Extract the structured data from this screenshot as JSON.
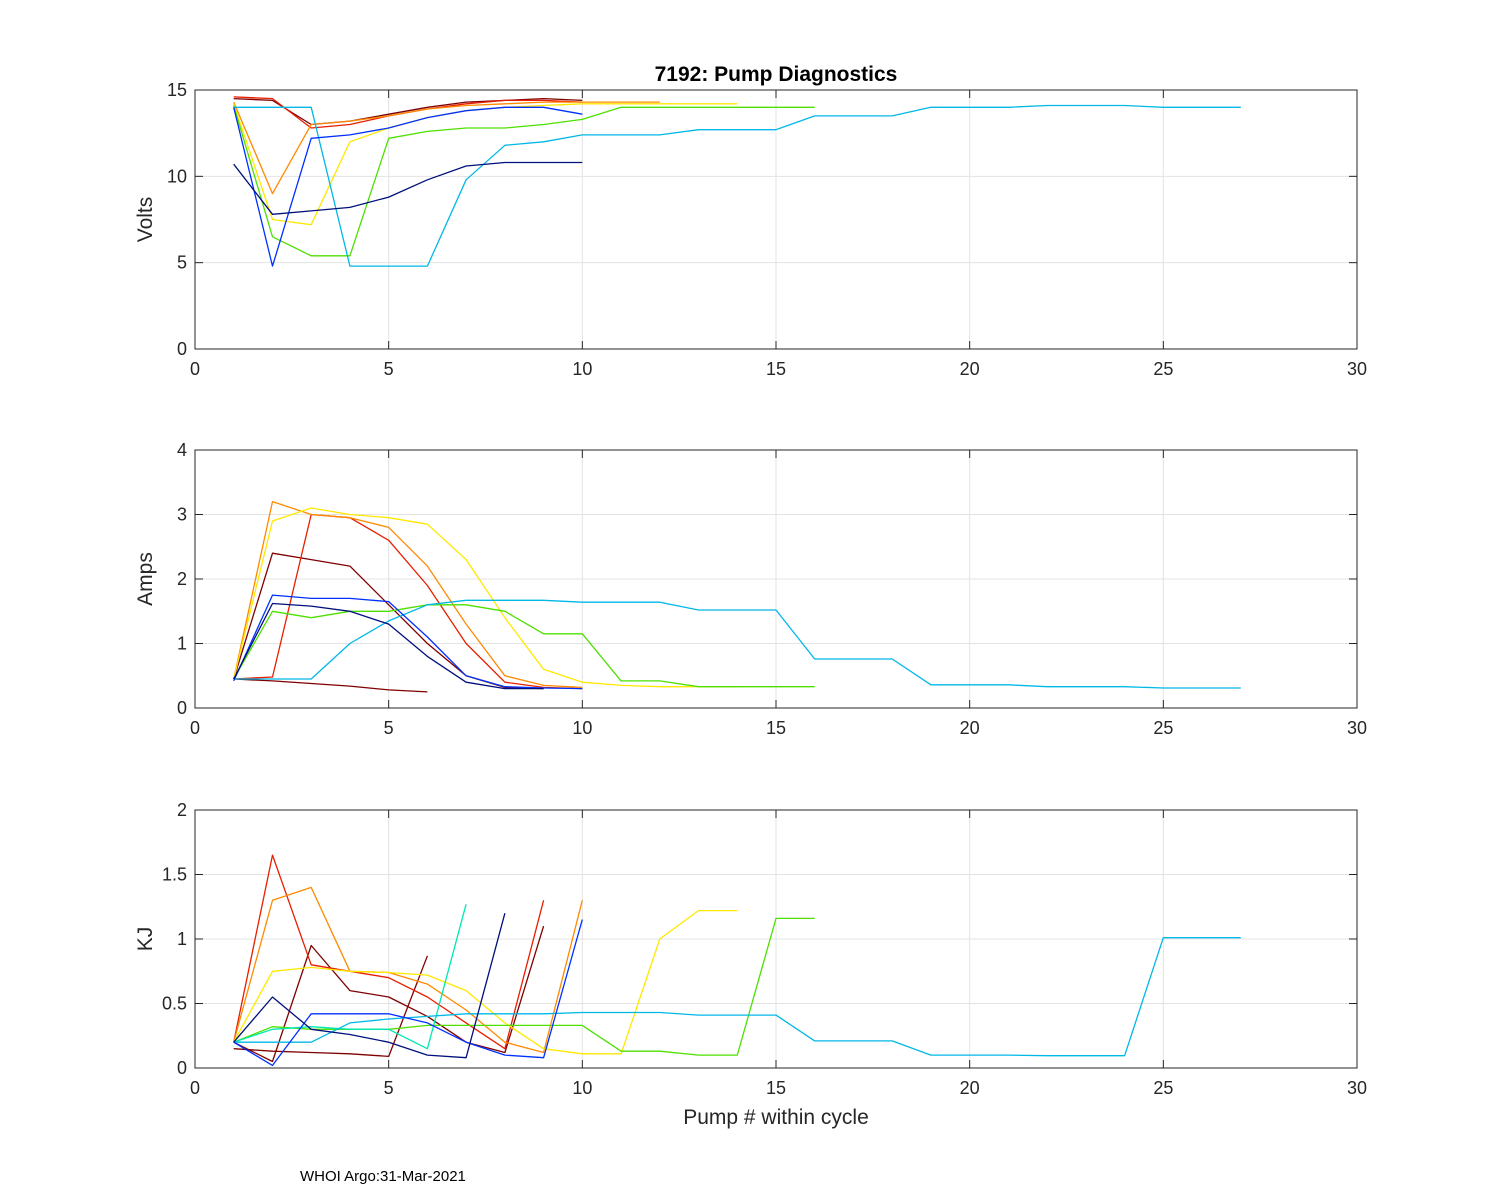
{
  "figure": {
    "title": "7192: Pump Diagnostics",
    "footer": "WHOI Argo:31-Mar-2021"
  },
  "chart_data": [
    {
      "type": "line",
      "title": "7192: Pump Diagnostics",
      "xlabel": "",
      "ylabel": "Volts",
      "xlim": [
        0,
        30
      ],
      "ylim": [
        0,
        15
      ],
      "xticks": [
        0,
        5,
        10,
        15,
        20,
        25,
        30
      ],
      "yticks": [
        0,
        5,
        10,
        15
      ],
      "grid": true,
      "series_note": "Many overlaid cycles colored by cycle index (jet colormap); representative series listed",
      "series": [
        {
          "name": "dark-red cycles",
          "color": "#7f0000",
          "x": [
            1,
            2,
            3,
            4,
            5,
            6,
            7,
            8,
            9,
            10
          ],
          "y": [
            14.5,
            14.4,
            13.0,
            13.2,
            13.6,
            14.0,
            14.3,
            14.4,
            14.5,
            14.4
          ]
        },
        {
          "name": "red cycles",
          "color": "#e81e00",
          "x": [
            1,
            2,
            3,
            4,
            5,
            6,
            7,
            8,
            9,
            10
          ],
          "y": [
            14.6,
            14.5,
            12.8,
            13.0,
            13.5,
            13.9,
            14.2,
            14.4,
            14.4,
            14.3
          ]
        },
        {
          "name": "orange cycles",
          "color": "#ff8a00",
          "x": [
            1,
            2,
            3,
            4,
            5,
            6,
            7,
            8,
            9,
            10,
            11,
            12
          ],
          "y": [
            14.3,
            9.0,
            13.0,
            13.2,
            13.5,
            13.9,
            14.1,
            14.2,
            14.3,
            14.3,
            14.3,
            14.3
          ]
        },
        {
          "name": "yellow cycles",
          "color": "#ffe800",
          "x": [
            1,
            2,
            3,
            4,
            5,
            6,
            7,
            8,
            9,
            10,
            11,
            12,
            13,
            14
          ],
          "y": [
            14.2,
            7.5,
            7.2,
            12.0,
            12.8,
            13.4,
            13.8,
            14.0,
            14.1,
            14.2,
            14.2,
            14.2,
            14.2,
            14.2
          ]
        },
        {
          "name": "green cycles",
          "color": "#4ee000",
          "x": [
            1,
            2,
            3,
            4,
            5,
            6,
            7,
            8,
            9,
            10,
            11,
            12,
            13,
            14,
            15,
            16
          ],
          "y": [
            14.1,
            6.5,
            5.4,
            5.4,
            12.2,
            12.6,
            12.8,
            12.8,
            13.0,
            13.3,
            14.0,
            14.0,
            14.0,
            14.0,
            14.0,
            14.0
          ]
        },
        {
          "name": "cyan long cycle",
          "color": "#00b8e8",
          "x": [
            1,
            2,
            3,
            4,
            5,
            6,
            7,
            8,
            9,
            10,
            11,
            12,
            13,
            14,
            15,
            16,
            17,
            18,
            19,
            20,
            21,
            22,
            23,
            24,
            25,
            26,
            27
          ],
          "y": [
            14.0,
            14.0,
            14.0,
            4.8,
            4.8,
            4.8,
            9.8,
            11.8,
            12.0,
            12.4,
            12.4,
            12.4,
            12.7,
            12.7,
            12.7,
            13.5,
            13.5,
            13.5,
            14.0,
            14.0,
            14.0,
            14.1,
            14.1,
            14.1,
            14.0,
            14.0,
            14.0
          ]
        },
        {
          "name": "blue cycles",
          "color": "#0030ff",
          "x": [
            1,
            2,
            3,
            4,
            5,
            6,
            7,
            8,
            9,
            10
          ],
          "y": [
            14.0,
            4.8,
            12.2,
            12.4,
            12.8,
            13.4,
            13.8,
            14.0,
            14.0,
            13.6
          ]
        },
        {
          "name": "navy cycles",
          "color": "#00107a",
          "x": [
            1,
            2,
            3,
            4,
            5,
            6,
            7,
            8,
            9,
            10
          ],
          "y": [
            10.7,
            7.8,
            8.0,
            8.2,
            8.8,
            9.8,
            10.6,
            10.8,
            10.8,
            10.8
          ]
        }
      ]
    },
    {
      "type": "line",
      "xlabel": "",
      "ylabel": "Amps",
      "xlim": [
        0,
        30
      ],
      "ylim": [
        0,
        4
      ],
      "xticks": [
        0,
        5,
        10,
        15,
        20,
        25,
        30
      ],
      "yticks": [
        0,
        1,
        2,
        3,
        4
      ],
      "grid": true,
      "series": [
        {
          "name": "dark-red cycles",
          "color": "#7f0000",
          "x": [
            1,
            2,
            3,
            4,
            5,
            6
          ],
          "y": [
            0.45,
            0.42,
            0.38,
            0.34,
            0.28,
            0.25
          ]
        },
        {
          "name": "dark-red cycles b",
          "color": "#7f0000",
          "x": [
            1,
            2,
            3,
            4,
            5,
            6,
            7,
            8,
            9
          ],
          "y": [
            0.45,
            2.4,
            2.3,
            2.2,
            1.6,
            1.0,
            0.5,
            0.32,
            0.3
          ]
        },
        {
          "name": "red cycles",
          "color": "#e81e00",
          "x": [
            1,
            2,
            3,
            4,
            5,
            6,
            7,
            8,
            9,
            10
          ],
          "y": [
            0.45,
            0.48,
            3.0,
            2.95,
            2.6,
            1.9,
            1.0,
            0.4,
            0.32,
            0.3
          ]
        },
        {
          "name": "orange cycles",
          "color": "#ff8a00",
          "x": [
            1,
            2,
            3,
            4,
            5,
            6,
            7,
            8,
            9,
            10
          ],
          "y": [
            0.45,
            3.2,
            3.0,
            2.95,
            2.8,
            2.2,
            1.3,
            0.5,
            0.35,
            0.32
          ]
        },
        {
          "name": "yellow cycles",
          "color": "#ffe800",
          "x": [
            1,
            2,
            3,
            4,
            5,
            6,
            7,
            8,
            9,
            10,
            11,
            12,
            13,
            14
          ],
          "y": [
            0.45,
            2.9,
            3.1,
            3.0,
            2.95,
            2.85,
            2.3,
            1.4,
            0.6,
            0.4,
            0.35,
            0.33,
            0.33,
            0.33
          ]
        },
        {
          "name": "green cycles",
          "color": "#4ee000",
          "x": [
            1,
            2,
            3,
            4,
            5,
            6,
            7,
            8,
            9,
            10,
            11,
            12,
            13,
            14,
            15,
            16
          ],
          "y": [
            0.45,
            1.5,
            1.4,
            1.5,
            1.5,
            1.6,
            1.6,
            1.5,
            1.15,
            1.15,
            0.42,
            0.42,
            0.33,
            0.33,
            0.33,
            0.33
          ]
        },
        {
          "name": "cyan long cycle",
          "color": "#00b8e8",
          "x": [
            1,
            2,
            3,
            4,
            5,
            6,
            7,
            8,
            9,
            10,
            11,
            12,
            13,
            14,
            15,
            16,
            17,
            18,
            19,
            20,
            21,
            22,
            23,
            24,
            25,
            26,
            27
          ],
          "y": [
            0.45,
            0.45,
            0.45,
            1.0,
            1.35,
            1.6,
            1.67,
            1.67,
            1.67,
            1.64,
            1.64,
            1.64,
            1.52,
            1.52,
            1.52,
            0.76,
            0.76,
            0.76,
            0.36,
            0.36,
            0.36,
            0.33,
            0.33,
            0.33,
            0.31,
            0.31,
            0.31
          ]
        },
        {
          "name": "blue cycles",
          "color": "#0030ff",
          "x": [
            1,
            2,
            3,
            4,
            5,
            6,
            7,
            8,
            9,
            10
          ],
          "y": [
            0.42,
            1.75,
            1.7,
            1.7,
            1.65,
            1.1,
            0.5,
            0.33,
            0.31,
            0.3
          ]
        },
        {
          "name": "navy cycles",
          "color": "#00107a",
          "x": [
            1,
            2,
            3,
            4,
            5,
            6,
            7,
            8,
            9
          ],
          "y": [
            0.45,
            1.62,
            1.58,
            1.5,
            1.3,
            0.8,
            0.4,
            0.3,
            0.3
          ]
        }
      ]
    },
    {
      "type": "line",
      "xlabel": "Pump # within cycle",
      "ylabel": "KJ",
      "xlim": [
        0,
        30
      ],
      "ylim": [
        0,
        2
      ],
      "xticks": [
        0,
        5,
        10,
        15,
        20,
        25,
        30
      ],
      "yticks": [
        0,
        0.5,
        1,
        1.5,
        2
      ],
      "ytick_labels": [
        "0",
        "0.5",
        "1",
        "1.5",
        "2"
      ],
      "grid": true,
      "series": [
        {
          "name": "dark-red cycles",
          "color": "#7f0000",
          "x": [
            1,
            2,
            3,
            4,
            5,
            6
          ],
          "y": [
            0.15,
            0.13,
            0.12,
            0.11,
            0.09,
            0.87
          ]
        },
        {
          "name": "dark-red cycles b",
          "color": "#7f0000",
          "x": [
            1,
            2,
            3,
            4,
            5,
            6,
            7,
            8,
            9
          ],
          "y": [
            0.2,
            0.05,
            0.95,
            0.6,
            0.55,
            0.4,
            0.2,
            0.12,
            1.1
          ]
        },
        {
          "name": "red cycles",
          "color": "#e81e00",
          "x": [
            1,
            2,
            3,
            4,
            5,
            6,
            7,
            8,
            9
          ],
          "y": [
            0.2,
            1.65,
            0.8,
            0.75,
            0.7,
            0.55,
            0.35,
            0.15,
            1.3
          ]
        },
        {
          "name": "orange cycles",
          "color": "#ff8a00",
          "x": [
            1,
            2,
            3,
            4,
            5,
            6,
            7,
            8,
            9,
            10
          ],
          "y": [
            0.2,
            1.3,
            1.4,
            0.75,
            0.74,
            0.65,
            0.45,
            0.2,
            0.12,
            1.3
          ]
        },
        {
          "name": "yellow cycles",
          "color": "#ffe800",
          "x": [
            1,
            2,
            3,
            4,
            5,
            6,
            7,
            8,
            9,
            10,
            11,
            12,
            13,
            14
          ],
          "y": [
            0.2,
            0.75,
            0.78,
            0.75,
            0.74,
            0.72,
            0.6,
            0.35,
            0.15,
            0.11,
            0.11,
            1.0,
            1.22,
            1.22
          ]
        },
        {
          "name": "green cycles",
          "color": "#4ee000",
          "x": [
            1,
            2,
            3,
            4,
            5,
            6,
            7,
            8,
            9,
            10,
            11,
            12,
            13,
            14,
            15,
            16
          ],
          "y": [
            0.2,
            0.32,
            0.3,
            0.3,
            0.3,
            0.33,
            0.33,
            0.33,
            0.33,
            0.33,
            0.13,
            0.13,
            0.1,
            0.1,
            1.16,
            1.16
          ]
        },
        {
          "name": "teal cycles",
          "color": "#00e8b0",
          "x": [
            1,
            2,
            3,
            4,
            5,
            6,
            7
          ],
          "y": [
            0.2,
            0.3,
            0.32,
            0.3,
            0.3,
            0.15,
            1.27
          ]
        },
        {
          "name": "cyan long cycle",
          "color": "#00b8e8",
          "x": [
            1,
            2,
            3,
            4,
            5,
            6,
            7,
            8,
            9,
            10,
            11,
            12,
            13,
            14,
            15,
            16,
            17,
            18,
            19,
            20,
            21,
            22,
            23,
            24,
            25,
            26,
            27
          ],
          "y": [
            0.2,
            0.2,
            0.2,
            0.35,
            0.38,
            0.4,
            0.42,
            0.42,
            0.42,
            0.43,
            0.43,
            0.43,
            0.41,
            0.41,
            0.41,
            0.21,
            0.21,
            0.21,
            0.1,
            0.1,
            0.1,
            0.095,
            0.095,
            0.095,
            1.01,
            1.01,
            1.01
          ]
        },
        {
          "name": "blue cycles",
          "color": "#0030ff",
          "x": [
            1,
            2,
            3,
            4,
            5,
            6,
            7,
            8,
            9,
            10
          ],
          "y": [
            0.2,
            0.02,
            0.42,
            0.42,
            0.42,
            0.35,
            0.2,
            0.1,
            0.08,
            1.15
          ]
        },
        {
          "name": "navy cycles",
          "color": "#00107a",
          "x": [
            1,
            2,
            3,
            4,
            5,
            6,
            7,
            8
          ],
          "y": [
            0.2,
            0.55,
            0.3,
            0.26,
            0.2,
            0.1,
            0.08,
            1.2
          ]
        }
      ]
    }
  ]
}
